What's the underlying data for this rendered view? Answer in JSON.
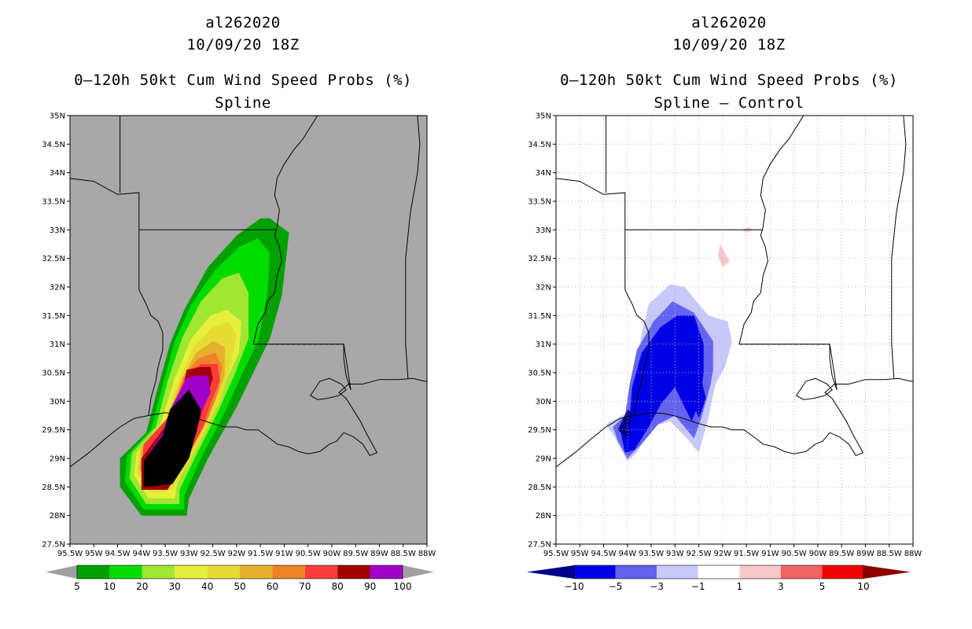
{
  "panels": [
    {
      "storm_id": "al262020",
      "datetime": "10/09/20 18Z",
      "title": "0–120h 50kt Cum Wind Speed Probs (%)",
      "subtitle": "Spline",
      "colorbar_labels": [
        "5",
        "10",
        "20",
        "30",
        "40",
        "50",
        "60",
        "70",
        "80",
        "90",
        "100"
      ]
    },
    {
      "storm_id": "al262020",
      "datetime": "10/09/20 18Z",
      "title": "0–120h 50kt Cum Wind Speed Probs (%)",
      "subtitle": "Spline – Control",
      "colorbar_labels": [
        "−10",
        "−5",
        "−3",
        "−1",
        "1",
        "3",
        "5",
        "10"
      ]
    }
  ],
  "chart_data": [
    {
      "type": "contour-map",
      "variable": "0-120h 50kt cumulative wind speed probability (%)",
      "subtitle": "Spline",
      "x_ticks": [
        "95.5W",
        "95W",
        "94.5W",
        "94W",
        "93.5W",
        "93W",
        "92.5W",
        "92W",
        "91.5W",
        "91W",
        "90.5W",
        "90W",
        "89.5W",
        "89W",
        "88.5W",
        "88W"
      ],
      "y_ticks": [
        "27.5N",
        "28N",
        "28.5N",
        "29N",
        "29.5N",
        "30N",
        "30.5N",
        "31N",
        "31.5N",
        "32N",
        "32.5N",
        "33N",
        "33.5N",
        "34N",
        "34.5N",
        "35N"
      ],
      "xlim": [
        -95.5,
        -88
      ],
      "ylim": [
        27.5,
        35
      ],
      "grid": false,
      "levels": [
        5,
        10,
        20,
        30,
        40,
        50,
        60,
        70,
        80,
        90,
        100
      ],
      "level_colors": [
        "#00a000",
        "#00dc00",
        "#a0e632",
        "#e6f03c",
        "#e6dc32",
        "#e6af2d",
        "#f08228",
        "#fa3c3c",
        "#a00000",
        "#a000c8"
      ],
      "under_color": "#a0a0a0",
      "over_color": "#a0a0a0",
      "background_color": "#a8a8a8",
      "regions": [
        {
          "level": 5,
          "points": [
            [
              -94.45,
              28.5
            ],
            [
              -94.45,
              29.0
            ],
            [
              -93.9,
              29.45
            ],
            [
              -93.65,
              30.25
            ],
            [
              -93.4,
              31.0
            ],
            [
              -93.1,
              31.6
            ],
            [
              -92.6,
              32.35
            ],
            [
              -92.0,
              32.9
            ],
            [
              -91.5,
              33.2
            ],
            [
              -91.3,
              33.2
            ],
            [
              -90.9,
              32.95
            ],
            [
              -91.05,
              31.85
            ],
            [
              -91.3,
              31.1
            ],
            [
              -91.65,
              30.5
            ],
            [
              -92.0,
              29.9
            ],
            [
              -92.6,
              29.0
            ],
            [
              -93.0,
              28.3
            ],
            [
              -93.05,
              28.0
            ],
            [
              -94.0,
              28.0
            ]
          ]
        },
        {
          "level": 10,
          "points": [
            [
              -94.35,
              28.6
            ],
            [
              -94.3,
              29.05
            ],
            [
              -93.8,
              29.5
            ],
            [
              -93.55,
              30.3
            ],
            [
              -93.3,
              31.05
            ],
            [
              -92.95,
              31.7
            ],
            [
              -92.45,
              32.3
            ],
            [
              -91.95,
              32.7
            ],
            [
              -91.55,
              32.85
            ],
            [
              -91.3,
              32.6
            ],
            [
              -91.35,
              31.9
            ],
            [
              -91.55,
              31.05
            ],
            [
              -91.9,
              30.45
            ],
            [
              -92.25,
              29.8
            ],
            [
              -92.75,
              29.0
            ],
            [
              -93.1,
              28.35
            ],
            [
              -93.1,
              28.1
            ],
            [
              -93.95,
              28.1
            ]
          ]
        },
        {
          "level": 20,
          "points": [
            [
              -94.25,
              28.65
            ],
            [
              -94.2,
              29.1
            ],
            [
              -93.7,
              29.55
            ],
            [
              -93.45,
              30.35
            ],
            [
              -93.15,
              31.1
            ],
            [
              -92.75,
              31.75
            ],
            [
              -92.3,
              32.15
            ],
            [
              -91.95,
              32.25
            ],
            [
              -91.75,
              31.9
            ],
            [
              -91.75,
              31.1
            ],
            [
              -92.05,
              30.45
            ],
            [
              -92.4,
              29.8
            ],
            [
              -92.85,
              29.05
            ],
            [
              -93.2,
              28.45
            ],
            [
              -93.2,
              28.2
            ],
            [
              -93.9,
              28.2
            ]
          ]
        },
        {
          "level": 30,
          "points": [
            [
              -94.15,
              28.7
            ],
            [
              -94.1,
              29.1
            ],
            [
              -93.6,
              29.6
            ],
            [
              -93.3,
              30.4
            ],
            [
              -92.95,
              31.1
            ],
            [
              -92.55,
              31.5
            ],
            [
              -92.2,
              31.6
            ],
            [
              -91.9,
              31.4
            ],
            [
              -91.95,
              30.85
            ],
            [
              -92.2,
              30.4
            ],
            [
              -92.5,
              29.8
            ],
            [
              -92.95,
              29.1
            ],
            [
              -93.25,
              28.55
            ],
            [
              -93.3,
              28.3
            ],
            [
              -93.85,
              28.3
            ]
          ]
        },
        {
          "level": 40,
          "points": [
            [
              -94.1,
              28.75
            ],
            [
              -94.05,
              29.15
            ],
            [
              -93.5,
              29.65
            ],
            [
              -93.2,
              30.4
            ],
            [
              -92.9,
              30.95
            ],
            [
              -92.5,
              31.3
            ],
            [
              -92.15,
              31.4
            ],
            [
              -92.0,
              31.15
            ],
            [
              -92.15,
              30.55
            ],
            [
              -92.35,
              30.0
            ],
            [
              -92.7,
              29.4
            ],
            [
              -93.05,
              28.85
            ],
            [
              -93.35,
              28.45
            ],
            [
              -93.8,
              28.4
            ]
          ]
        },
        {
          "level": 50,
          "points": [
            [
              -94.05,
              28.8
            ],
            [
              -94.0,
              29.2
            ],
            [
              -93.45,
              29.7
            ],
            [
              -93.15,
              30.4
            ],
            [
              -92.85,
              30.85
            ],
            [
              -92.5,
              31.05
            ],
            [
              -92.25,
              30.95
            ],
            [
              -92.25,
              30.45
            ],
            [
              -92.45,
              30.0
            ],
            [
              -92.75,
              29.45
            ],
            [
              -93.1,
              28.9
            ],
            [
              -93.4,
              28.5
            ],
            [
              -93.75,
              28.45
            ]
          ]
        },
        {
          "level": 60,
          "points": [
            [
              -94.0,
              28.82
            ],
            [
              -93.95,
              29.22
            ],
            [
              -93.4,
              29.75
            ],
            [
              -93.1,
              30.45
            ],
            [
              -92.8,
              30.75
            ],
            [
              -92.45,
              30.85
            ],
            [
              -92.3,
              30.6
            ],
            [
              -92.4,
              30.15
            ],
            [
              -92.6,
              29.7
            ],
            [
              -92.85,
              29.3
            ],
            [
              -93.15,
              28.85
            ],
            [
              -93.45,
              28.5
            ],
            [
              -93.75,
              28.48
            ]
          ]
        },
        {
          "level": 70,
          "points": [
            [
              -94.0,
              28.85
            ],
            [
              -93.95,
              29.25
            ],
            [
              -93.35,
              29.8
            ],
            [
              -93.05,
              30.5
            ],
            [
              -92.75,
              30.65
            ],
            [
              -92.4,
              30.65
            ],
            [
              -92.35,
              30.35
            ],
            [
              -92.55,
              29.95
            ],
            [
              -92.7,
              29.55
            ],
            [
              -92.9,
              29.25
            ],
            [
              -93.15,
              28.85
            ],
            [
              -93.45,
              28.5
            ],
            [
              -93.75,
              28.48
            ]
          ]
        },
        {
          "level": 80,
          "points": [
            [
              -94.0,
              28.45
            ],
            [
              -94.0,
              29.0
            ],
            [
              -93.55,
              29.5
            ],
            [
              -93.3,
              29.9
            ],
            [
              -93.1,
              30.3
            ],
            [
              -93.05,
              30.55
            ],
            [
              -92.75,
              30.6
            ],
            [
              -92.55,
              30.6
            ],
            [
              -92.5,
              30.4
            ],
            [
              -92.7,
              29.9
            ],
            [
              -92.85,
              29.45
            ],
            [
              -93.05,
              29.0
            ],
            [
              -93.35,
              28.6
            ],
            [
              -93.45,
              28.45
            ]
          ]
        },
        {
          "level": 90,
          "points": [
            [
              -93.95,
              28.5
            ],
            [
              -93.95,
              28.95
            ],
            [
              -93.55,
              29.45
            ],
            [
              -93.4,
              29.85
            ],
            [
              -93.05,
              30.4
            ],
            [
              -92.9,
              30.45
            ],
            [
              -92.6,
              30.45
            ],
            [
              -92.55,
              30.15
            ],
            [
              -92.75,
              29.8
            ],
            [
              -92.9,
              29.35
            ],
            [
              -93.1,
              28.95
            ],
            [
              -93.4,
              28.55
            ]
          ]
        },
        {
          "level": 100,
          "points": [
            [
              -93.95,
              28.5
            ],
            [
              -93.95,
              28.95
            ],
            [
              -93.55,
              29.4
            ],
            [
              -93.4,
              29.85
            ],
            [
              -93.0,
              30.2
            ],
            [
              -92.75,
              29.85
            ],
            [
              -92.85,
              29.45
            ],
            [
              -93.0,
              29.0
            ],
            [
              -93.35,
              28.55
            ]
          ]
        }
      ]
    },
    {
      "type": "contour-map",
      "variable": "0-120h 50kt cumulative wind speed probability difference (%)",
      "subtitle": "Spline – Control",
      "x_ticks": [
        "95.5W",
        "95W",
        "94.5W",
        "94W",
        "93.5W",
        "93W",
        "92.5W",
        "92W",
        "91.5W",
        "91W",
        "90.5W",
        "90W",
        "89.5W",
        "89W",
        "88.5W",
        "88W"
      ],
      "y_ticks": [
        "27.5N",
        "28N",
        "28.5N",
        "29N",
        "29.5N",
        "30N",
        "30.5N",
        "31N",
        "31.5N",
        "32N",
        "32.5N",
        "33N",
        "33.5N",
        "34N",
        "34.5N",
        "35N"
      ],
      "xlim": [
        -95.5,
        -88
      ],
      "ylim": [
        27.5,
        35
      ],
      "grid": true,
      "levels": [
        -10,
        -5,
        -3,
        -1,
        1,
        3,
        5,
        10
      ],
      "level_colors": [
        "#0000e6",
        "#6464f0",
        "#c8c8fa",
        "#ffffff",
        "#fac8c8",
        "#f06464",
        "#f00000"
      ],
      "under_color": "#00008c",
      "over_color": "#8c0000",
      "background_color": "#ffffff",
      "regions": [
        {
          "level": -1,
          "points": [
            [
              -94.45,
              29.6
            ],
            [
              -94.0,
              29.8
            ],
            [
              -93.85,
              30.35
            ],
            [
              -93.7,
              31.2
            ],
            [
              -93.55,
              31.7
            ],
            [
              -93.1,
              32.05
            ],
            [
              -92.8,
              32.0
            ],
            [
              -92.3,
              31.5
            ],
            [
              -91.9,
              31.4
            ],
            [
              -91.8,
              31.05
            ],
            [
              -91.95,
              30.6
            ],
            [
              -92.15,
              30.3
            ],
            [
              -92.3,
              29.7
            ],
            [
              -92.5,
              29.1
            ],
            [
              -92.75,
              29.35
            ],
            [
              -93.1,
              29.65
            ],
            [
              -93.5,
              29.55
            ],
            [
              -93.8,
              29.1
            ],
            [
              -94.0,
              28.95
            ],
            [
              -94.25,
              29.35
            ]
          ]
        },
        {
          "level": -3,
          "points": [
            [
              -94.3,
              29.55
            ],
            [
              -94.05,
              29.75
            ],
            [
              -93.95,
              30.3
            ],
            [
              -93.8,
              30.9
            ],
            [
              -93.45,
              31.4
            ],
            [
              -93.05,
              31.75
            ],
            [
              -92.6,
              31.55
            ],
            [
              -92.2,
              31.05
            ],
            [
              -92.2,
              30.55
            ],
            [
              -92.25,
              30.3
            ],
            [
              -92.45,
              29.7
            ],
            [
              -92.6,
              29.35
            ],
            [
              -92.8,
              29.55
            ],
            [
              -93.0,
              29.75
            ],
            [
              -93.35,
              29.6
            ],
            [
              -93.7,
              29.25
            ],
            [
              -94.0,
              29.0
            ],
            [
              -94.2,
              29.3
            ]
          ]
        },
        {
          "level": -5,
          "points": [
            [
              -94.15,
              29.5
            ],
            [
              -93.95,
              29.75
            ],
            [
              -93.9,
              30.25
            ],
            [
              -93.7,
              30.85
            ],
            [
              -93.3,
              31.3
            ],
            [
              -92.95,
              31.5
            ],
            [
              -92.6,
              31.5
            ],
            [
              -92.4,
              31.0
            ],
            [
              -92.4,
              30.5
            ],
            [
              -92.45,
              30.15
            ],
            [
              -92.55,
              29.85
            ],
            [
              -92.65,
              29.65
            ],
            [
              -92.8,
              29.9
            ],
            [
              -93.0,
              30.25
            ],
            [
              -93.3,
              29.95
            ],
            [
              -93.55,
              29.55
            ],
            [
              -93.85,
              29.15
            ],
            [
              -94.05,
              29.1
            ]
          ]
        },
        {
          "level": -10,
          "points": [
            [
              -94.2,
              29.5
            ],
            [
              -94.0,
              29.35
            ],
            [
              -93.9,
              29.8
            ],
            [
              -94.0,
              29.85
            ]
          ]
        }
      ]
    }
  ]
}
